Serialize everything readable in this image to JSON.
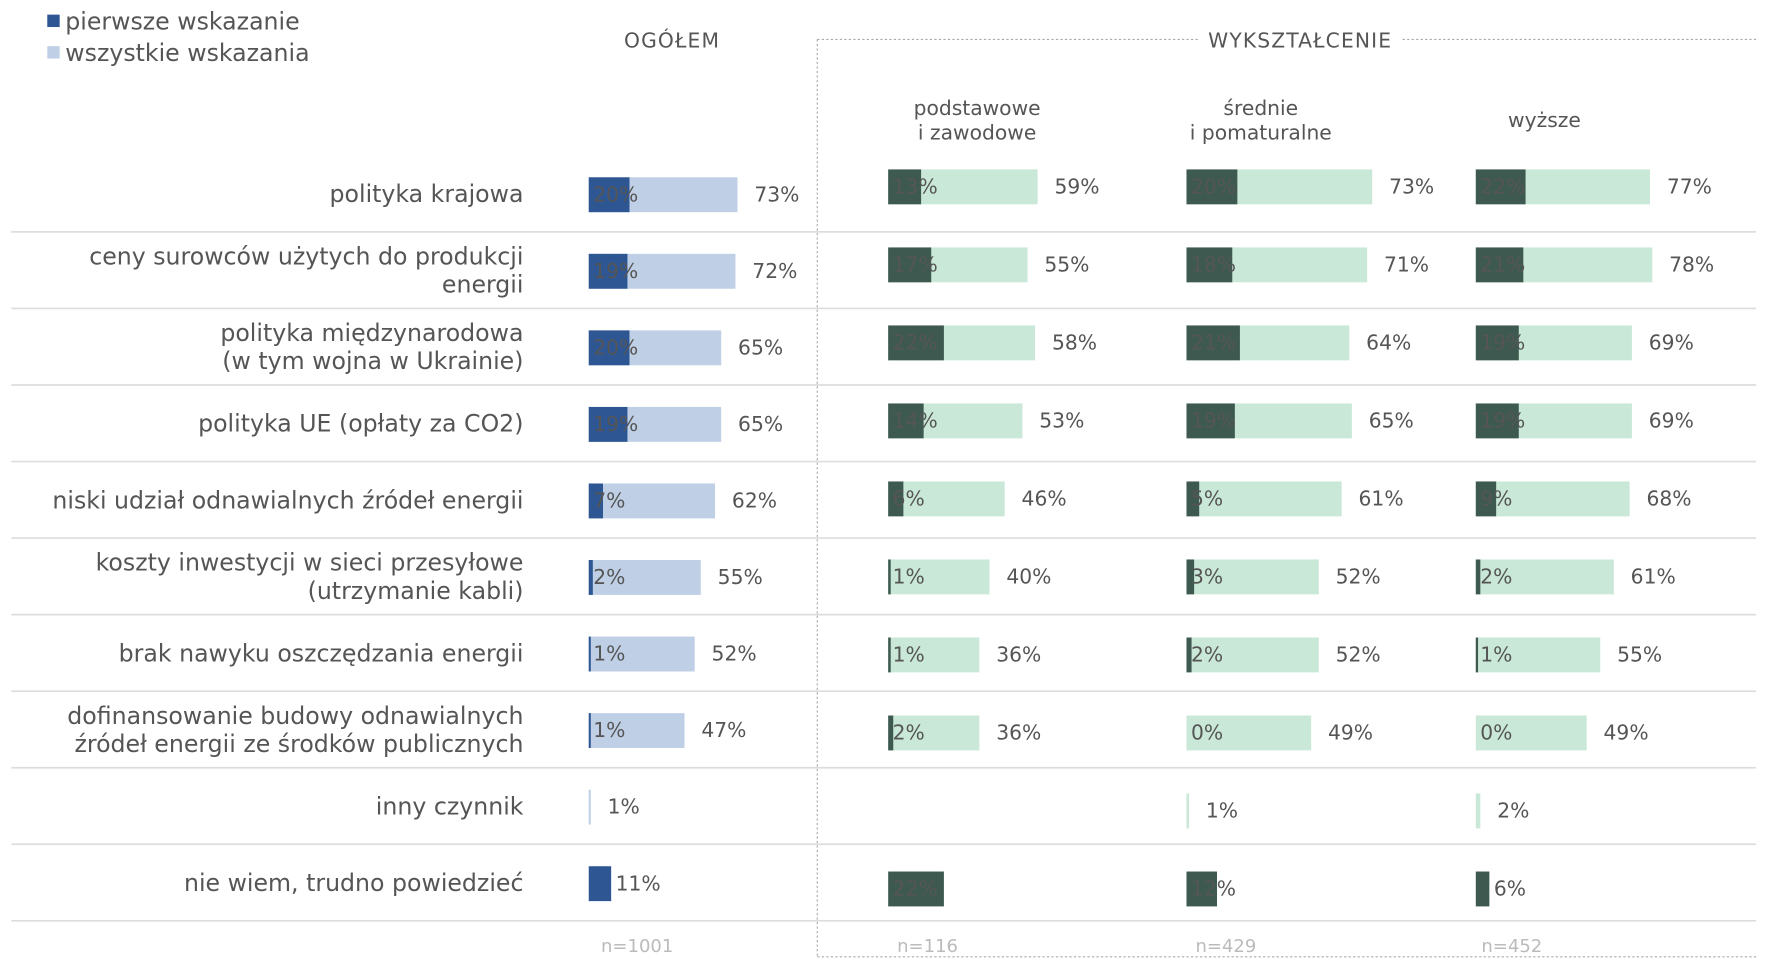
{
  "chart_data": {
    "type": "bar",
    "group_title": "WYKSZTAŁCENIE",
    "categories": [
      "polityka krajowa",
      "ceny surowców użytych do produkcji\nenergii",
      "polityka międzynarodowa\n(w tym wojna w Ukrainie)",
      "polityka UE (opłaty za CO2)",
      "niski udział odnawialnych źródeł energii",
      "koszty inwestycji w sieci przesyłowe\n(utrzymanie kabli)",
      "brak nawyku oszczędzania energii",
      "dofinansowanie budowy odnawialnych\nźródeł energii ze środków publicznych",
      "inny czynnik",
      "nie wiem, trudno powiedzieć"
    ],
    "panels": [
      {
        "title": "OGÓŁEM",
        "n": "n=1001",
        "xlim": [
          0,
          100
        ],
        "series": [
          {
            "name": "pierwsze wskazanie",
            "color": "#2d5693",
            "values": [
              20,
              19,
              20,
              19,
              7,
              2,
              1,
              1,
              null,
              11
            ],
            "value_labels": [
              "20%",
              "19%",
              "20%",
              "19%",
              "7%",
              "2%",
              "1%",
              "1%",
              null,
              "11%"
            ]
          },
          {
            "name": "wszystkie wskazania",
            "color": "#bfd0e6",
            "values": [
              73,
              72,
              65,
              65,
              62,
              55,
              52,
              47,
              1,
              null
            ],
            "value_labels": [
              "73%",
              "72%",
              "65%",
              "65%",
              "62%",
              "55%",
              "52%",
              "47%",
              "1%",
              null
            ]
          }
        ]
      },
      {
        "title": "podstawowe\ni zawodowe",
        "n": "n=116",
        "xlim": [
          0,
          100
        ],
        "series": [
          {
            "name": "pierwsze wskazanie",
            "color": "#3e5a50",
            "values": [
              13,
              17,
              22,
              14,
              6,
              1,
              1,
              2,
              null,
              22
            ],
            "value_labels": [
              "13%",
              "17%",
              "22%",
              "14%",
              "6%",
              "1%",
              "1%",
              "2%",
              null,
              "22%"
            ]
          },
          {
            "name": "wszystkie wskazania",
            "color": "#c9e8d7",
            "values": [
              59,
              55,
              58,
              53,
              46,
              40,
              36,
              36,
              null,
              null
            ],
            "value_labels": [
              "59%",
              "55%",
              "58%",
              "53%",
              "46%",
              "40%",
              "36%",
              "36%",
              null,
              null
            ]
          }
        ]
      },
      {
        "title": "średnie\ni pomaturalne",
        "n": "n=429",
        "xlim": [
          0,
          100
        ],
        "series": [
          {
            "name": "pierwsze wskazanie",
            "color": "#3e5a50",
            "values": [
              20,
              18,
              21,
              19,
              5,
              3,
              2,
              0,
              null,
              12
            ],
            "value_labels": [
              "20%",
              "18%",
              "21%",
              "19%",
              "5%",
              "3%",
              "2%",
              "0%",
              null,
              "12%"
            ]
          },
          {
            "name": "wszystkie wskazania",
            "color": "#c9e8d7",
            "values": [
              73,
              71,
              64,
              65,
              61,
              52,
              52,
              49,
              1,
              null
            ],
            "value_labels": [
              "73%",
              "71%",
              "64%",
              "65%",
              "61%",
              "52%",
              "52%",
              "49%",
              "1%",
              null
            ]
          }
        ]
      },
      {
        "title": "wyższe",
        "n": "n=452",
        "xlim": [
          0,
          100
        ],
        "series": [
          {
            "name": "pierwsze wskazanie",
            "color": "#3e5a50",
            "values": [
              22,
              21,
              19,
              19,
              9,
              2,
              1,
              0,
              null,
              6
            ],
            "value_labels": [
              "22%",
              "21%",
              "19%",
              "19%",
              "9%",
              "2%",
              "1%",
              "0%",
              null,
              "6%"
            ]
          },
          {
            "name": "wszystkie wskazania",
            "color": "#c9e8d7",
            "values": [
              77,
              78,
              69,
              69,
              68,
              61,
              55,
              49,
              2,
              null
            ],
            "value_labels": [
              "77%",
              "78%",
              "69%",
              "69%",
              "68%",
              "61%",
              "55%",
              "49%",
              "2%",
              null
            ]
          }
        ]
      }
    ]
  }
}
